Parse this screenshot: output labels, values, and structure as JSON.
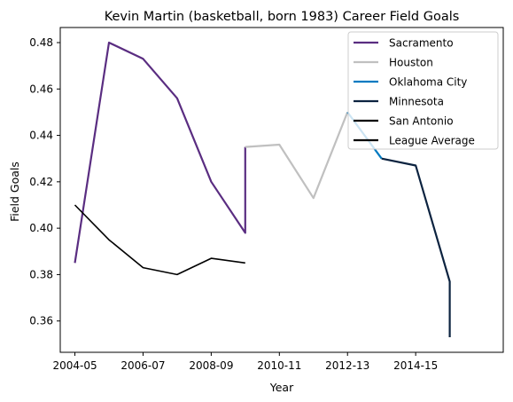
{
  "chart_data": {
    "type": "line",
    "title": "Kevin Martin (basketball, born 1983) Career Field Goals",
    "xlabel": "Year",
    "ylabel": "Field Goals",
    "x_ticks": [
      {
        "label": "2004-05",
        "x": 2004
      },
      {
        "label": "2006-07",
        "x": 2006
      },
      {
        "label": "2008-09",
        "x": 2008
      },
      {
        "label": "2010-11",
        "x": 2010
      },
      {
        "label": "2012-13",
        "x": 2012
      },
      {
        "label": "2014-15",
        "x": 2014
      }
    ],
    "y_ticks": [
      "0.36",
      "0.38",
      "0.40",
      "0.42",
      "0.44",
      "0.46",
      "0.48"
    ],
    "xlim": [
      2003.57,
      2016.57
    ],
    "ylim": [
      0.3465,
      0.4865
    ],
    "grid": false,
    "legend_position": "top-right",
    "series": [
      {
        "name": "Sacramento",
        "color": "#5a2d81",
        "points": [
          [
            2004,
            0.385
          ],
          [
            2005,
            0.48
          ],
          [
            2006,
            0.473
          ],
          [
            2007,
            0.456
          ],
          [
            2008,
            0.42
          ],
          [
            2009,
            0.398
          ],
          [
            2009,
            0.435
          ]
        ]
      },
      {
        "name": "Houston",
        "color": "#c0c0c0",
        "points": [
          [
            2009,
            0.435
          ],
          [
            2010,
            0.436
          ],
          [
            2011,
            0.413
          ],
          [
            2012,
            0.45
          ]
        ]
      },
      {
        "name": "Oklahoma City",
        "color": "#007ac1",
        "points": [
          [
            2012,
            0.45
          ],
          [
            2013,
            0.43
          ]
        ]
      },
      {
        "name": "Minnesota",
        "color": "#0c2340",
        "points": [
          [
            2013,
            0.43
          ],
          [
            2014,
            0.427
          ],
          [
            2015,
            0.377
          ],
          [
            2015,
            0.353
          ]
        ]
      },
      {
        "name": "San Antonio",
        "color": "#000000",
        "points": []
      },
      {
        "name": "League Average",
        "color": "#000000",
        "points": [
          [
            2004,
            0.41
          ],
          [
            2005,
            0.395
          ],
          [
            2006,
            0.383
          ],
          [
            2007,
            0.38
          ],
          [
            2008,
            0.387
          ],
          [
            2009,
            0.385
          ]
        ]
      }
    ]
  }
}
